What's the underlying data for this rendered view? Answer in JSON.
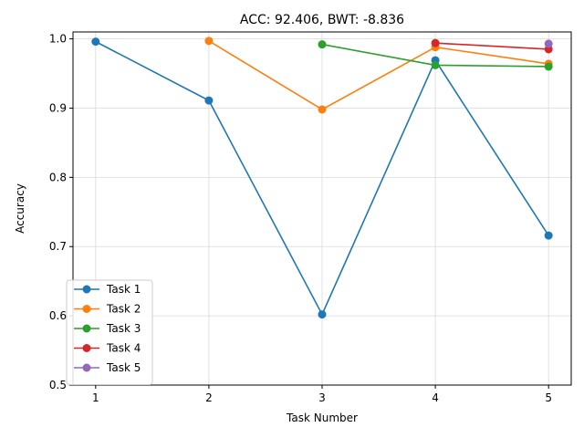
{
  "chart_data": {
    "type": "line",
    "title": "ACC: 92.406, BWT: -8.836",
    "xlabel": "Task Number",
    "ylabel": "Accuracy",
    "xlim": [
      0.8,
      5.2
    ],
    "ylim": [
      0.5,
      1.01
    ],
    "xticks": [
      1,
      2,
      3,
      4,
      5
    ],
    "yticks": [
      0.5,
      0.6,
      0.7,
      0.8,
      0.9,
      1.0
    ],
    "ytick_labels": [
      "0.5",
      "0.6",
      "0.7",
      "0.8",
      "0.9",
      "1.0"
    ],
    "grid": true,
    "legend_position": "lower-left",
    "series": [
      {
        "name": "Task 1",
        "color": "#1f77b4",
        "x": [
          1,
          2,
          3,
          4,
          5
        ],
        "y": [
          0.996,
          0.911,
          0.602,
          0.969,
          0.716
        ]
      },
      {
        "name": "Task 2",
        "color": "#ff7f0e",
        "x": [
          2,
          3,
          4,
          5
        ],
        "y": [
          0.997,
          0.898,
          0.988,
          0.964
        ]
      },
      {
        "name": "Task 3",
        "color": "#2ca02c",
        "x": [
          3,
          4,
          5
        ],
        "y": [
          0.992,
          0.962,
          0.96
        ]
      },
      {
        "name": "Task 4",
        "color": "#d62728",
        "x": [
          4,
          5
        ],
        "y": [
          0.994,
          0.985
        ]
      },
      {
        "name": "Task 5",
        "color": "#9467bd",
        "x": [
          5
        ],
        "y": [
          0.993
        ]
      }
    ]
  }
}
